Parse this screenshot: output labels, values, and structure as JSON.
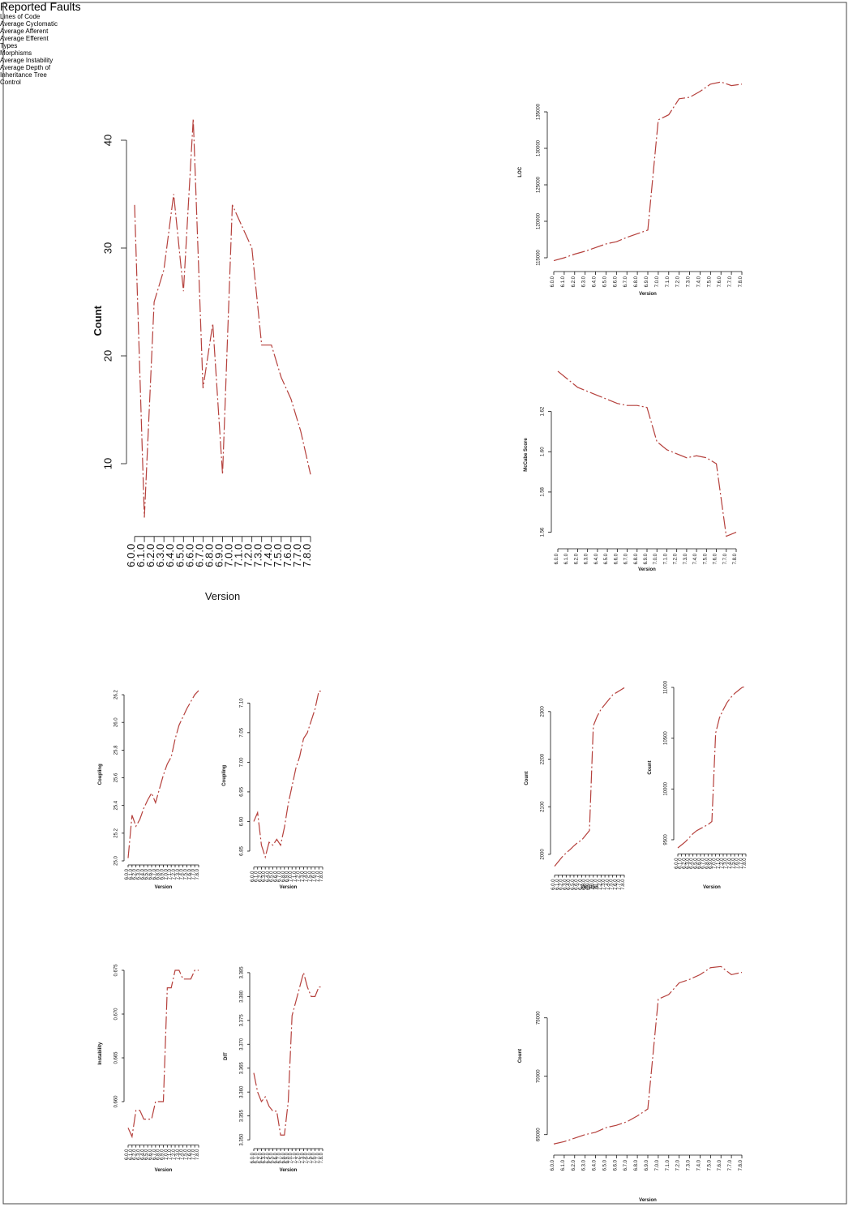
{
  "chart_data": [
    {
      "type": "line",
      "title": "Reported Faults",
      "xlabel": "Version",
      "ylabel": "Count",
      "color": "#b5403c",
      "categories": [
        "6.0.0",
        "6.1.0",
        "6.2.0",
        "6.3.0",
        "6.4.0",
        "6.5.0",
        "6.6.0",
        "6.7.0",
        "6.8.0",
        "6.9.0",
        "7.0.0",
        "7.1.0",
        "7.2.0",
        "7.3.0",
        "7.4.0",
        "7.5.0",
        "7.6.0",
        "7.7.0",
        "7.8.0"
      ],
      "values": [
        34,
        5,
        25,
        28,
        35,
        26,
        42,
        17,
        23,
        9,
        34,
        32,
        30,
        21,
        21,
        18,
        16,
        13,
        9
      ],
      "ylim": [
        4,
        42.5
      ],
      "yticks": [
        10,
        20,
        30,
        40
      ]
    },
    {
      "type": "line",
      "title": "Lines of Code",
      "xlabel": "Version",
      "ylabel": "LOC",
      "color": "#b5403c",
      "categories": [
        "6.0.0",
        "6.1.0",
        "6.2.0",
        "6.3.0",
        "6.4.0",
        "6.5.0",
        "6.6.0",
        "6.7.0",
        "6.8.0",
        "6.9.0",
        "7.0.0",
        "7.1.0",
        "7.2.0",
        "7.3.0",
        "7.4.0",
        "7.5.0",
        "7.6.0",
        "7.7.0",
        "7.8.0"
      ],
      "values": [
        114600,
        115000,
        115500,
        115900,
        116400,
        116900,
        117200,
        117800,
        118300,
        118800,
        133900,
        134600,
        136800,
        137000,
        137800,
        138800,
        139100,
        138600,
        138800
      ],
      "ylim": [
        114000,
        139500
      ],
      "yticks": [
        115000,
        120000,
        125000,
        130000,
        135000
      ]
    },
    {
      "type": "line",
      "title": "Average Cyclomatic",
      "xlabel": "Version",
      "ylabel": "McCabe Score",
      "color": "#b5403c",
      "categories": [
        "6.0.0",
        "6.1.0",
        "6.2.0",
        "6.3.0",
        "6.4.0",
        "6.5.0",
        "6.6.0",
        "6.7.0",
        "6.8.0",
        "6.9.0",
        "7.0.0",
        "7.1.0",
        "7.2.0",
        "7.3.0",
        "7.4.0",
        "7.5.0",
        "7.6.0",
        "7.7.0",
        "7.8.0"
      ],
      "values": [
        1.64,
        1.636,
        1.632,
        1.63,
        1.628,
        1.626,
        1.624,
        1.623,
        1.623,
        1.622,
        1.605,
        1.601,
        1.599,
        1.597,
        1.598,
        1.597,
        1.594,
        1.558,
        1.56
      ],
      "ylim": [
        1.555,
        1.642
      ],
      "yticks": [
        1.56,
        1.58,
        {
          "value": 1.6,
          "label": "1.60"
        },
        1.62
      ]
    },
    {
      "type": "line",
      "title": "Average Afferent",
      "xlabel": "Version",
      "ylabel": "Coupling",
      "color": "#b5403c",
      "categories": [
        "6.0.0",
        "6.1.0",
        "6.2.0",
        "6.3.0",
        "6.4.0",
        "6.5.0",
        "6.6.0",
        "6.7.0",
        "6.8.0",
        "6.9.0",
        "7.0.0",
        "7.1.0",
        "7.2.0",
        "7.3.0",
        "7.4.0",
        "7.5.0",
        "7.6.0",
        "7.7.0",
        "7.8.0"
      ],
      "values": [
        25.02,
        25.33,
        25.25,
        25.3,
        25.38,
        25.44,
        25.49,
        25.42,
        25.52,
        25.62,
        25.7,
        25.75,
        25.88,
        25.98,
        26.04,
        26.1,
        26.15,
        26.2,
        26.23
      ],
      "ylim": [
        25.0,
        26.25
      ],
      "yticks": [
        {
          "value": 25,
          "label": "25.0"
        },
        25.2,
        25.4,
        25.6,
        25.8,
        {
          "value": 26,
          "label": "26.0"
        },
        26.2
      ]
    },
    {
      "type": "line",
      "title": "Average Efferent",
      "xlabel": "Version",
      "ylabel": "Coupling",
      "color": "#b5403c",
      "categories": [
        "6.0.0",
        "6.1.0",
        "6.2.0",
        "6.3.0",
        "6.4.0",
        "6.5.0",
        "6.6.0",
        "6.7.0",
        "6.8.0",
        "6.9.0",
        "7.0.0",
        "7.1.0",
        "7.2.0",
        "7.3.0",
        "7.4.0",
        "7.5.0",
        "7.6.0",
        "7.7.0",
        "7.8.0"
      ],
      "values": [
        6.9,
        6.915,
        6.86,
        6.84,
        6.865,
        6.86,
        6.87,
        6.86,
        6.89,
        6.93,
        6.96,
        6.99,
        7.01,
        7.04,
        7.05,
        7.07,
        7.09,
        7.12,
        7.12
      ],
      "ylim": [
        6.83,
        7.125
      ],
      "yticks": [
        6.85,
        {
          "value": 6.9,
          "label": "6.90"
        },
        6.95,
        {
          "value": 7,
          "label": "7.00"
        },
        7.05,
        {
          "value": 7.1,
          "label": "7.10"
        }
      ]
    },
    {
      "type": "line",
      "title": "Types",
      "xlabel": "Version",
      "ylabel": "Count",
      "color": "#b5403c",
      "categories": [
        "6.0.0",
        "6.1.0",
        "6.2.0",
        "6.3.0",
        "6.4.0",
        "6.5.0",
        "6.6.0",
        "6.7.0",
        "6.8.0",
        "6.9.0",
        "7.0.0",
        "7.1.0",
        "7.2.0",
        "7.3.0",
        "7.4.0",
        "7.5.0",
        "7.6.0",
        "7.7.0",
        "7.8.0"
      ],
      "values": [
        1975,
        1985,
        1995,
        2003,
        2010,
        2018,
        2025,
        2030,
        2040,
        2050,
        2270,
        2290,
        2305,
        2315,
        2325,
        2335,
        2340,
        2345,
        2350
      ],
      "ylim": [
        1965,
        2355
      ],
      "yticks": [
        2000,
        2100,
        2200,
        2300
      ]
    },
    {
      "type": "line",
      "title": "Morphisms",
      "xlabel": "Version",
      "ylabel": "Count",
      "color": "#b5403c",
      "categories": [
        "6.0.0",
        "6.1.0",
        "6.2.0",
        "6.3.0",
        "6.4.0",
        "6.5.0",
        "6.6.0",
        "6.7.0",
        "6.8.0",
        "6.9.0",
        "7.0.0",
        "7.1.0",
        "7.2.0",
        "7.3.0",
        "7.4.0",
        "7.5.0",
        "7.6.0",
        "7.7.0",
        "7.8.0"
      ],
      "values": [
        9420,
        9450,
        9480,
        9520,
        9560,
        9590,
        9610,
        9630,
        9650,
        9680,
        10550,
        10700,
        10780,
        10850,
        10900,
        10940,
        10970,
        11000,
        11010
      ],
      "ylim": [
        9400,
        11020
      ],
      "yticks": [
        9500,
        10000,
        10500,
        11000
      ]
    },
    {
      "type": "line",
      "title": "Average Instability",
      "xlabel": "Version",
      "ylabel": "Instability",
      "color": "#b5403c",
      "categories": [
        "6.0.0",
        "6.1.0",
        "6.2.0",
        "6.3.0",
        "6.4.0",
        "6.5.0",
        "6.6.0",
        "6.7.0",
        "6.8.0",
        "6.9.0",
        "7.0.0",
        "7.1.0",
        "7.2.0",
        "7.3.0",
        "7.4.0",
        "7.5.0",
        "7.6.0",
        "7.7.0",
        "7.8.0"
      ],
      "values": [
        0.657,
        0.656,
        0.659,
        0.659,
        0.658,
        0.658,
        0.658,
        0.66,
        0.66,
        0.66,
        0.673,
        0.673,
        0.675,
        0.675,
        0.674,
        0.674,
        0.674,
        0.675,
        0.675
      ],
      "ylim": [
        0.6555,
        0.6755
      ],
      "yticks": [
        {
          "value": 0.66,
          "label": "0.660"
        },
        0.665,
        {
          "value": 0.67,
          "label": "0.670"
        },
        0.675
      ]
    },
    {
      "type": "line",
      "title": "Average Depth of Inheritance Tree",
      "xlabel": "Version",
      "ylabel": "DIT",
      "color": "#b5403c",
      "categories": [
        "6.0.0",
        "6.1.0",
        "6.2.0",
        "6.3.0",
        "6.4.0",
        "6.5.0",
        "6.6.0",
        "6.7.0",
        "6.8.0",
        "6.9.0",
        "7.0.0",
        "7.1.0",
        "7.2.0",
        "7.3.0",
        "7.4.0",
        "7.5.0",
        "7.6.0",
        "7.7.0",
        "7.8.0"
      ],
      "values": [
        3.364,
        3.36,
        3.358,
        3.359,
        3.357,
        3.356,
        3.356,
        3.351,
        3.351,
        3.358,
        3.376,
        3.379,
        3.382,
        3.385,
        3.382,
        3.38,
        3.38,
        3.382,
        3.382
      ],
      "ylim": [
        3.349,
        3.386
      ],
      "yticks": [
        {
          "value": 3.35,
          "label": "3.350"
        },
        3.355,
        {
          "value": 3.36,
          "label": "3.360"
        },
        3.365,
        {
          "value": 3.37,
          "label": "3.370"
        },
        3.375,
        {
          "value": 3.38,
          "label": "3.380"
        },
        3.385
      ]
    },
    {
      "type": "line",
      "title": "Control",
      "xlabel": "Version",
      "ylabel": "Count",
      "color": "#b5403c",
      "categories": [
        "6.0.0",
        "6.1.0",
        "6.2.0",
        "6.3.0",
        "6.4.0",
        "6.5.0",
        "6.6.0",
        "6.7.0",
        "6.8.0",
        "6.9.0",
        "7.0.0",
        "7.1.0",
        "7.2.0",
        "7.3.0",
        "7.4.0",
        "7.5.0",
        "7.6.0",
        "7.7.0",
        "7.8.0"
      ],
      "values": [
        64200,
        64400,
        64700,
        65000,
        65200,
        65600,
        65800,
        66100,
        66600,
        67200,
        76600,
        77000,
        78000,
        78300,
        78700,
        79300,
        79400,
        78700,
        78900
      ],
      "ylim": [
        63800,
        79700
      ],
      "yticks": [
        65000,
        70000,
        75000
      ]
    }
  ]
}
